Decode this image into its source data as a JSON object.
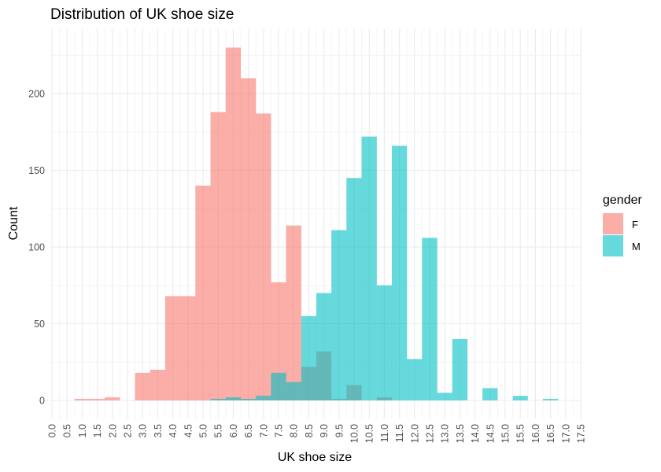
{
  "chart_data": {
    "type": "bar",
    "subtype": "overlapping histogram",
    "title": "Distribution of UK shoe size",
    "xlabel": "UK shoe size",
    "ylabel": "Count",
    "xlim": [
      0,
      17.5
    ],
    "ylim": [
      0,
      240
    ],
    "bin_width": 0.5,
    "x_ticks": [
      "0.0",
      "0.5",
      "1.0",
      "1.5",
      "2.0",
      "2.5",
      "3.0",
      "3.5",
      "4.0",
      "4.5",
      "5.0",
      "5.5",
      "6.0",
      "6.5",
      "7.0",
      "7.5",
      "8.0",
      "8.5",
      "9.0",
      "9.5",
      "10.0",
      "10.5",
      "11.0",
      "11.5",
      "12.0",
      "12.5",
      "13.0",
      "13.5",
      "14.0",
      "14.5",
      "15.0",
      "15.5",
      "16.0",
      "16.5",
      "17.0",
      "17.5"
    ],
    "y_ticks": [
      0,
      50,
      100,
      150,
      200
    ],
    "grid": true,
    "legend": {
      "title": "gender",
      "position": "right"
    },
    "series": [
      {
        "name": "F",
        "color": "#F8766D",
        "rendered_color": "#F9A9A4",
        "x": [
          1.0,
          1.5,
          2.0,
          3.0,
          3.5,
          4.0,
          4.5,
          5.0,
          5.5,
          6.0,
          6.5,
          7.0,
          7.5,
          8.0,
          8.5,
          9.0,
          9.5,
          10.0,
          11.0
        ],
        "values": [
          1,
          1,
          2,
          18,
          20,
          68,
          68,
          140,
          188,
          230,
          210,
          187,
          77,
          114,
          22,
          32,
          1,
          10,
          2
        ]
      },
      {
        "name": "M",
        "color": "#00BFC4",
        "rendered_color": "#5ED6DA",
        "x": [
          5.5,
          6.0,
          6.5,
          7.0,
          7.5,
          8.0,
          8.5,
          9.0,
          9.5,
          10.0,
          10.5,
          11.0,
          11.5,
          12.0,
          12.5,
          13.0,
          13.5,
          14.5,
          15.5,
          16.5
        ],
        "values": [
          1,
          2,
          1,
          3,
          18,
          12,
          55,
          70,
          111,
          145,
          172,
          75,
          166,
          27,
          106,
          5,
          40,
          8,
          3,
          1
        ]
      }
    ]
  }
}
